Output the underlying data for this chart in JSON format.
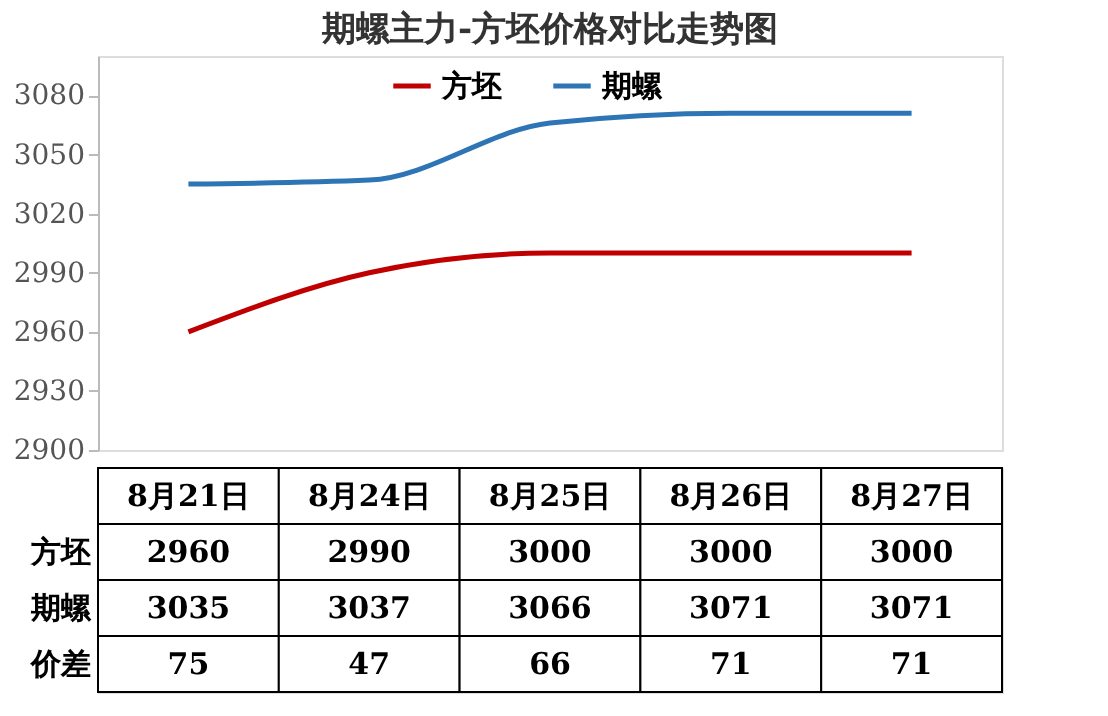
{
  "chart_data": {
    "type": "line",
    "title": "期螺主力-方坯价格对比走势图",
    "categories": [
      "8月21日",
      "8月24日",
      "8月25日",
      "8月26日",
      "8月27日"
    ],
    "series": [
      {
        "name": "方坯",
        "color": "#c00000",
        "values": [
          2960,
          2990,
          3000,
          3000,
          3000
        ]
      },
      {
        "name": "期螺",
        "color": "#2e75b6",
        "values": [
          3035,
          3037,
          3066,
          3071,
          3071
        ]
      }
    ],
    "ylim": [
      2900,
      3100
    ],
    "yticks": [
      2900,
      2930,
      2960,
      2990,
      3020,
      3050,
      3080
    ],
    "grid": false,
    "legend": "top",
    "data_labels": true,
    "line_style": "solid",
    "marker": "none",
    "annotations": [
      "价差",
      "75",
      "47",
      "66",
      "71",
      "71"
    ]
  }
}
